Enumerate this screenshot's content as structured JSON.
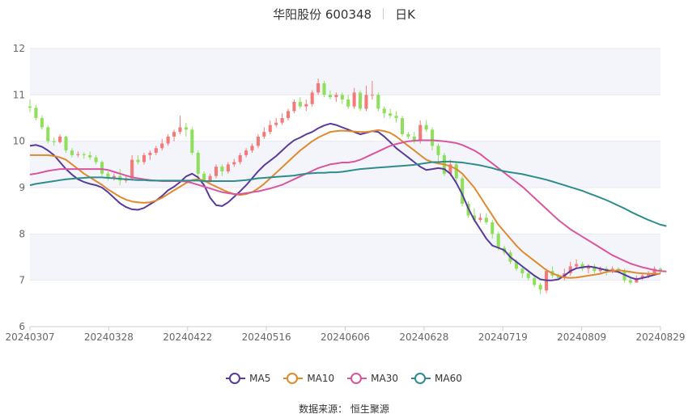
{
  "title": {
    "name": "华阳股份 600348",
    "period": "日K"
  },
  "source": "数据来源： 恒生聚源",
  "colors": {
    "up": "#f47a7a",
    "down": "#8ee05a",
    "grid": "#e8e8f0",
    "band": "#f4f5fb",
    "axis_text": "#666666"
  },
  "chart_data": {
    "type": "candlestick",
    "ylim": [
      6,
      12
    ],
    "yticks": [
      "6",
      "7",
      "8",
      "9",
      "10",
      "11",
      "12"
    ],
    "xticks": [
      "20240307",
      "20240328",
      "20240422",
      "20240516",
      "20240606",
      "20240628",
      "20240719",
      "20240809",
      "20240829"
    ],
    "ohlc": [
      [
        10.75,
        10.72,
        10.9,
        10.62
      ],
      [
        10.72,
        10.5,
        10.78,
        10.45
      ],
      [
        10.5,
        10.3,
        10.56,
        10.25
      ],
      [
        10.3,
        10.0,
        10.34,
        9.95
      ],
      [
        10.0,
        9.98,
        10.08,
        9.9
      ],
      [
        9.98,
        10.1,
        10.15,
        9.95
      ],
      [
        10.1,
        9.8,
        10.12,
        9.75
      ],
      [
        9.8,
        9.7,
        9.85,
        9.65
      ],
      [
        9.7,
        9.72,
        9.78,
        9.65
      ],
      [
        9.72,
        9.7,
        9.76,
        9.62
      ],
      [
        9.7,
        9.65,
        9.78,
        9.6
      ],
      [
        9.65,
        9.55,
        9.7,
        9.5
      ],
      [
        9.55,
        9.3,
        9.58,
        9.25
      ],
      [
        9.3,
        9.2,
        9.35,
        9.15
      ],
      [
        9.2,
        9.25,
        9.3,
        9.15
      ],
      [
        9.25,
        9.15,
        9.4,
        9.05
      ],
      [
        9.15,
        9.2,
        9.28,
        9.1
      ],
      [
        9.2,
        9.6,
        9.7,
        9.15
      ],
      [
        9.6,
        9.55,
        9.7,
        9.5
      ],
      [
        9.55,
        9.7,
        9.75,
        9.5
      ],
      [
        9.7,
        9.75,
        9.8,
        9.6
      ],
      [
        9.75,
        9.85,
        9.9,
        9.7
      ],
      [
        9.85,
        9.95,
        10.05,
        9.8
      ],
      [
        9.95,
        10.1,
        10.15,
        9.9
      ],
      [
        10.1,
        10.2,
        10.25,
        10.0
      ],
      [
        10.2,
        10.3,
        10.55,
        10.15
      ],
      [
        10.3,
        10.25,
        10.4,
        10.1
      ],
      [
        10.25,
        9.75,
        10.3,
        9.7
      ],
      [
        9.75,
        9.3,
        9.8,
        9.2
      ],
      [
        9.3,
        9.15,
        9.35,
        9.1
      ],
      [
        9.15,
        9.25,
        9.3,
        9.1
      ],
      [
        9.25,
        9.45,
        9.5,
        9.2
      ],
      [
        9.45,
        9.35,
        9.5,
        9.25
      ],
      [
        9.35,
        9.5,
        9.55,
        9.3
      ],
      [
        9.5,
        9.55,
        9.62,
        9.45
      ],
      [
        9.55,
        9.7,
        9.75,
        9.5
      ],
      [
        9.7,
        9.8,
        9.85,
        9.65
      ],
      [
        9.8,
        9.9,
        9.95,
        9.75
      ],
      [
        9.9,
        10.1,
        10.15,
        9.85
      ],
      [
        10.1,
        10.2,
        10.3,
        10.05
      ],
      [
        10.2,
        10.35,
        10.45,
        10.15
      ],
      [
        10.35,
        10.4,
        10.5,
        10.3
      ],
      [
        10.4,
        10.5,
        10.6,
        10.35
      ],
      [
        10.5,
        10.65,
        10.7,
        10.45
      ],
      [
        10.65,
        10.85,
        10.9,
        10.6
      ],
      [
        10.85,
        10.75,
        10.95,
        10.7
      ],
      [
        10.75,
        10.8,
        10.9,
        10.65
      ],
      [
        10.8,
        11.05,
        11.1,
        10.75
      ],
      [
        11.05,
        11.25,
        11.35,
        11.0
      ],
      [
        11.25,
        11.0,
        11.3,
        10.95
      ],
      [
        11.0,
        10.95,
        11.1,
        10.9
      ],
      [
        10.95,
        11.0,
        11.05,
        10.85
      ],
      [
        11.0,
        10.9,
        11.05,
        10.8
      ],
      [
        10.9,
        10.75,
        11.0,
        10.7
      ],
      [
        10.75,
        11.05,
        11.15,
        10.7
      ],
      [
        11.05,
        10.7,
        11.1,
        10.65
      ],
      [
        10.7,
        11.0,
        11.2,
        10.65
      ],
      [
        11.0,
        11.0,
        11.3,
        10.9
      ],
      [
        11.0,
        10.7,
        11.05,
        10.65
      ],
      [
        10.7,
        10.6,
        10.75,
        10.5
      ],
      [
        10.6,
        10.55,
        10.7,
        10.5
      ],
      [
        10.55,
        10.5,
        10.65,
        10.4
      ],
      [
        10.5,
        10.15,
        10.55,
        10.1
      ],
      [
        10.15,
        10.1,
        10.2,
        10.05
      ],
      [
        10.1,
        10.0,
        10.2,
        9.95
      ],
      [
        10.0,
        10.35,
        10.45,
        9.95
      ],
      [
        10.35,
        10.25,
        10.45,
        10.2
      ],
      [
        10.25,
        9.9,
        10.3,
        9.8
      ],
      [
        9.9,
        9.7,
        9.95,
        9.5
      ],
      [
        9.7,
        9.3,
        9.75,
        9.25
      ],
      [
        9.3,
        9.5,
        9.6,
        9.25
      ],
      [
        9.5,
        9.2,
        9.55,
        9.1
      ],
      [
        9.2,
        8.65,
        9.25,
        8.6
      ],
      [
        8.65,
        8.4,
        8.7,
        8.35
      ],
      [
        8.4,
        8.3,
        8.55,
        8.25
      ],
      [
        8.3,
        8.35,
        8.45,
        8.25
      ],
      [
        8.35,
        8.25,
        8.45,
        8.2
      ],
      [
        8.25,
        8.0,
        8.3,
        7.9
      ],
      [
        8.0,
        7.7,
        8.05,
        7.65
      ],
      [
        7.7,
        7.6,
        7.75,
        7.55
      ],
      [
        7.6,
        7.4,
        7.65,
        7.35
      ],
      [
        7.4,
        7.25,
        7.45,
        7.2
      ],
      [
        7.25,
        7.15,
        7.3,
        7.05
      ],
      [
        7.15,
        7.05,
        7.2,
        7.0
      ],
      [
        7.05,
        6.9,
        7.1,
        6.85
      ],
      [
        6.9,
        6.8,
        6.95,
        6.7
      ],
      [
        6.78,
        7.2,
        7.25,
        6.72
      ],
      [
        7.2,
        7.1,
        7.3,
        7.05
      ],
      [
        7.1,
        7.05,
        7.15,
        7.0
      ],
      [
        7.05,
        7.15,
        7.25,
        7.0
      ],
      [
        7.15,
        7.3,
        7.4,
        7.1
      ],
      [
        7.3,
        7.35,
        7.45,
        7.25
      ],
      [
        7.35,
        7.25,
        7.4,
        7.2
      ],
      [
        7.25,
        7.3,
        7.35,
        7.15
      ],
      [
        7.3,
        7.2,
        7.35,
        7.15
      ],
      [
        7.2,
        7.25,
        7.3,
        7.15
      ],
      [
        7.25,
        7.2,
        7.3,
        7.1
      ],
      [
        7.2,
        7.25,
        7.3,
        7.15
      ],
      [
        7.25,
        7.2,
        7.28,
        7.15
      ],
      [
        7.2,
        7.0,
        7.25,
        6.95
      ],
      [
        7.0,
        6.95,
        7.05,
        6.9
      ],
      [
        6.95,
        7.05,
        7.1,
        6.95
      ],
      [
        7.05,
        7.1,
        7.15,
        7.0
      ],
      [
        7.1,
        7.15,
        7.2,
        7.05
      ],
      [
        7.15,
        7.25,
        7.3,
        7.1
      ],
      [
        7.25,
        7.2,
        7.28,
        7.15
      ]
    ],
    "series": [
      {
        "name": "MA5",
        "color": "#5b3a9e",
        "values": [
          9.9,
          9.92,
          9.88,
          9.8,
          9.7,
          9.55,
          9.4,
          9.28,
          9.18,
          9.12,
          9.08,
          9.05,
          9.0,
          8.9,
          8.78,
          8.66,
          8.58,
          8.53,
          8.52,
          8.56,
          8.64,
          8.72,
          8.82,
          8.94,
          9.02,
          9.12,
          9.24,
          9.3,
          9.22,
          9.05,
          8.78,
          8.62,
          8.6,
          8.68,
          8.8,
          8.92,
          9.05,
          9.2,
          9.35,
          9.48,
          9.58,
          9.68,
          9.8,
          9.92,
          10.02,
          10.08,
          10.15,
          10.2,
          10.28,
          10.34,
          10.38,
          10.35,
          10.3,
          10.25,
          10.2,
          10.15,
          10.18,
          10.22,
          10.2,
          10.1,
          9.98,
          9.85,
          9.75,
          9.65,
          9.55,
          9.45,
          9.38,
          9.4,
          9.42,
          9.4,
          9.3,
          9.1,
          8.85,
          8.55,
          8.3,
          8.1,
          7.9,
          7.75,
          7.7,
          7.65,
          7.5,
          7.4,
          7.3,
          7.2,
          7.1,
          7.02,
          7.0,
          7.0,
          7.02,
          7.1,
          7.2,
          7.26,
          7.28,
          7.3,
          7.28,
          7.25,
          7.22,
          7.2,
          7.18,
          7.12,
          7.06,
          7.02,
          7.05,
          7.08,
          7.12,
          7.15
        ]
      },
      {
        "name": "MA10",
        "color": "#e08a2e",
        "values": [
          9.7,
          9.7,
          9.7,
          9.7,
          9.68,
          9.65,
          9.6,
          9.5,
          9.4,
          9.3,
          9.22,
          9.14,
          9.06,
          8.96,
          8.88,
          8.8,
          8.74,
          8.7,
          8.68,
          8.67,
          8.68,
          8.72,
          8.78,
          8.86,
          8.94,
          9.02,
          9.1,
          9.16,
          9.18,
          9.15,
          9.08,
          9.02,
          8.96,
          8.9,
          8.86,
          8.84,
          8.86,
          8.9,
          8.98,
          9.08,
          9.2,
          9.32,
          9.44,
          9.56,
          9.68,
          9.8,
          9.9,
          10.0,
          10.08,
          10.14,
          10.2,
          10.22,
          10.23,
          10.22,
          10.21,
          10.2,
          10.2,
          10.22,
          10.24,
          10.22,
          10.18,
          10.1,
          10.0,
          9.9,
          9.8,
          9.7,
          9.6,
          9.55,
          9.52,
          9.5,
          9.46,
          9.4,
          9.3,
          9.15,
          9.0,
          8.8,
          8.6,
          8.4,
          8.2,
          8.05,
          7.9,
          7.75,
          7.62,
          7.52,
          7.42,
          7.32,
          7.22,
          7.15,
          7.1,
          7.06,
          7.05,
          7.06,
          7.08,
          7.1,
          7.12,
          7.14,
          7.18,
          7.2,
          7.22,
          7.2,
          7.18,
          7.16,
          7.15,
          7.14,
          7.14,
          7.14
        ]
      },
      {
        "name": "MA30",
        "color": "#d9569e",
        "values": [
          9.28,
          9.3,
          9.33,
          9.36,
          9.38,
          9.4,
          9.4,
          9.4,
          9.4,
          9.4,
          9.4,
          9.4,
          9.4,
          9.38,
          9.34,
          9.3,
          9.26,
          9.22,
          9.2,
          9.18,
          9.16,
          9.15,
          9.14,
          9.14,
          9.14,
          9.14,
          9.13,
          9.1,
          9.06,
          9.02,
          8.98,
          8.94,
          8.9,
          8.88,
          8.86,
          8.86,
          8.88,
          8.9,
          8.92,
          8.95,
          8.98,
          9.02,
          9.06,
          9.12,
          9.18,
          9.24,
          9.3,
          9.36,
          9.42,
          9.46,
          9.5,
          9.52,
          9.54,
          9.54,
          9.56,
          9.6,
          9.66,
          9.72,
          9.78,
          9.84,
          9.9,
          9.94,
          9.97,
          10.0,
          10.01,
          10.02,
          10.02,
          10.02,
          10.01,
          10.0,
          9.98,
          9.96,
          9.92,
          9.86,
          9.8,
          9.72,
          9.62,
          9.52,
          9.42,
          9.32,
          9.22,
          9.12,
          9.02,
          8.9,
          8.78,
          8.66,
          8.54,
          8.42,
          8.3,
          8.2,
          8.1,
          8.02,
          7.94,
          7.86,
          7.78,
          7.7,
          7.62,
          7.54,
          7.48,
          7.42,
          7.36,
          7.32,
          7.28,
          7.25,
          7.22,
          7.2,
          7.19
        ]
      },
      {
        "name": "MA60",
        "color": "#2e8c8c",
        "values": [
          9.05,
          9.08,
          9.1,
          9.12,
          9.14,
          9.16,
          9.18,
          9.19,
          9.2,
          9.21,
          9.22,
          9.22,
          9.22,
          9.21,
          9.2,
          9.19,
          9.18,
          9.17,
          9.16,
          9.16,
          9.15,
          9.15,
          9.15,
          9.15,
          9.15,
          9.15,
          9.15,
          9.15,
          9.15,
          9.14,
          9.14,
          9.14,
          9.14,
          9.14,
          9.14,
          9.15,
          9.16,
          9.18,
          9.2,
          9.21,
          9.22,
          9.23,
          9.24,
          9.25,
          9.26,
          9.28,
          9.3,
          9.31,
          9.32,
          9.32,
          9.33,
          9.33,
          9.34,
          9.36,
          9.38,
          9.4,
          9.41,
          9.42,
          9.43,
          9.44,
          9.45,
          9.46,
          9.47,
          9.48,
          9.49,
          9.51,
          9.53,
          9.55,
          9.55,
          9.56,
          9.56,
          9.55,
          9.54,
          9.52,
          9.5,
          9.48,
          9.45,
          9.42,
          9.38,
          9.35,
          9.33,
          9.31,
          9.29,
          9.26,
          9.23,
          9.2,
          9.17,
          9.13,
          9.09,
          9.05,
          9.01,
          8.97,
          8.93,
          8.88,
          8.83,
          8.78,
          8.73,
          8.67,
          8.61,
          8.55,
          8.48,
          8.42,
          8.36,
          8.3,
          8.25,
          8.2,
          8.17
        ]
      }
    ],
    "grid": true,
    "legend_position": "bottom"
  }
}
